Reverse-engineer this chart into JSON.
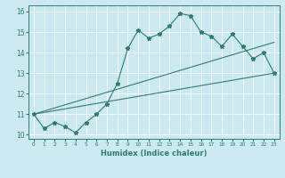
{
  "xlabel": "Humidex (Indice chaleur)",
  "xlim": [
    -0.5,
    23.5
  ],
  "ylim": [
    9.8,
    16.3
  ],
  "yticks": [
    10,
    11,
    12,
    13,
    14,
    15,
    16
  ],
  "xticks": [
    0,
    1,
    2,
    3,
    4,
    5,
    6,
    7,
    8,
    9,
    10,
    11,
    12,
    13,
    14,
    15,
    16,
    17,
    18,
    19,
    20,
    21,
    22,
    23
  ],
  "bg_color": "#cce8f0",
  "line_color": "#2e7d6e",
  "line1_x": [
    0,
    1,
    2,
    3,
    4,
    5,
    6,
    7,
    8,
    9,
    10,
    11,
    12,
    13,
    14,
    15,
    16,
    17,
    18,
    19,
    20,
    21,
    22,
    23
  ],
  "line1_y": [
    11.0,
    10.3,
    10.6,
    10.4,
    10.1,
    10.6,
    11.0,
    11.5,
    12.5,
    14.2,
    15.1,
    14.7,
    14.9,
    15.3,
    15.9,
    15.8,
    15.0,
    14.8,
    14.3,
    14.9,
    14.3,
    13.7,
    14.0,
    13.0
  ],
  "line2_x": [
    0,
    23
  ],
  "line2_y": [
    11.0,
    13.0
  ],
  "line3_x": [
    0,
    23
  ],
  "line3_y": [
    11.0,
    14.5
  ],
  "xtick_fontsize": 4.2,
  "ytick_fontsize": 5.5,
  "xlabel_fontsize": 6.0
}
